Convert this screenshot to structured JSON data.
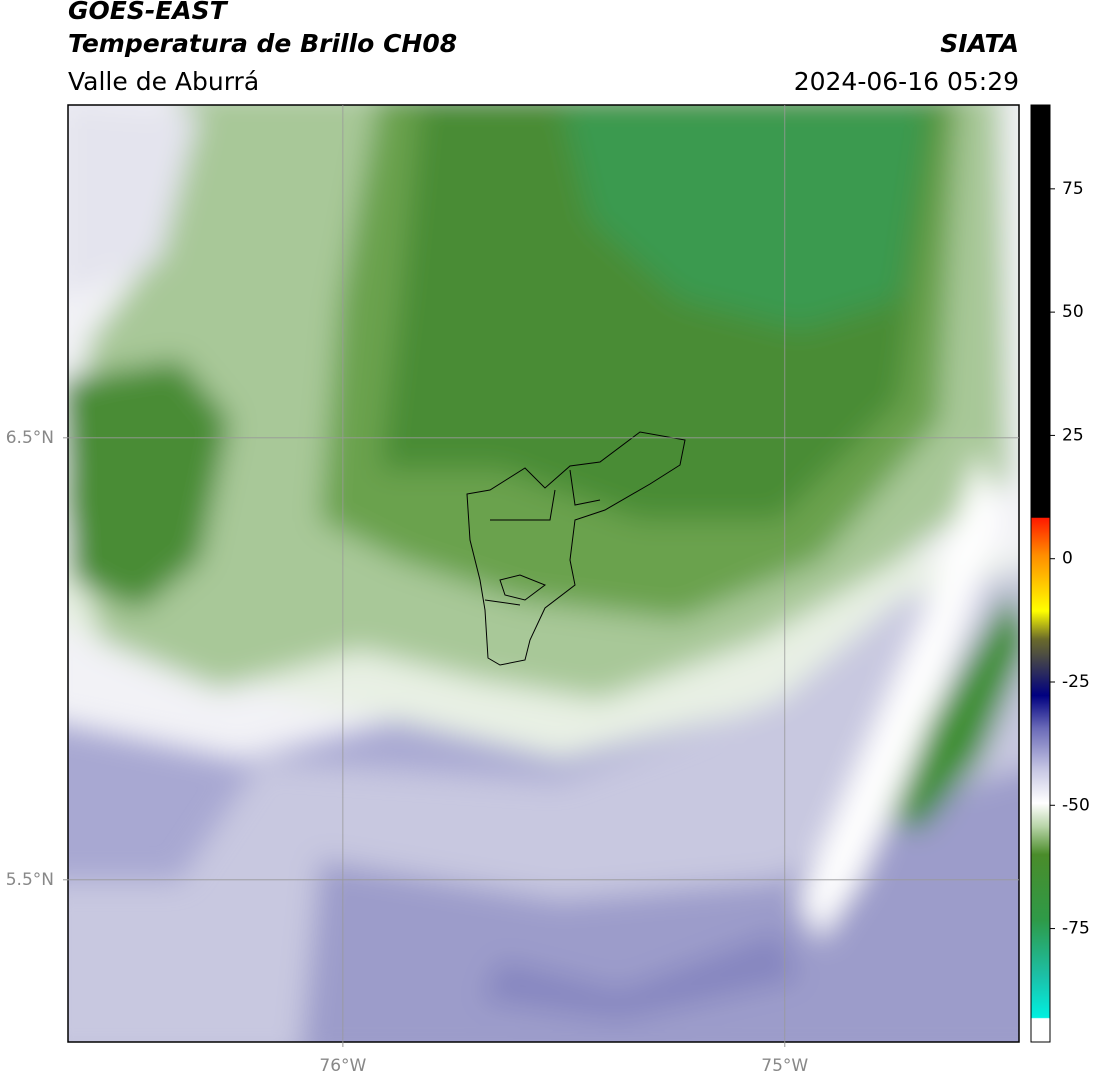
{
  "title": "GOES-EAST",
  "subtitle": "Temperatura de Brillo CH08",
  "region": "Valle de Aburrá",
  "source": "SIATA",
  "timestamp": "2024-06-16 05:29",
  "map": {
    "xlim": [
      -76.622,
      -74.47
    ],
    "ylim": [
      5.133,
      7.253
    ],
    "xticks": [
      {
        "value": -76,
        "label": "76°W"
      },
      {
        "value": -75,
        "label": "75°W"
      }
    ],
    "yticks": [
      {
        "value": 6.5,
        "label": "6.5°N"
      },
      {
        "value": 5.5,
        "label": "5.5°N"
      }
    ],
    "grid": true
  },
  "colorbar": {
    "lim": [
      -98,
      92
    ],
    "ticks": [
      75,
      50,
      25,
      0,
      -25,
      -50,
      -75
    ]
  }
}
